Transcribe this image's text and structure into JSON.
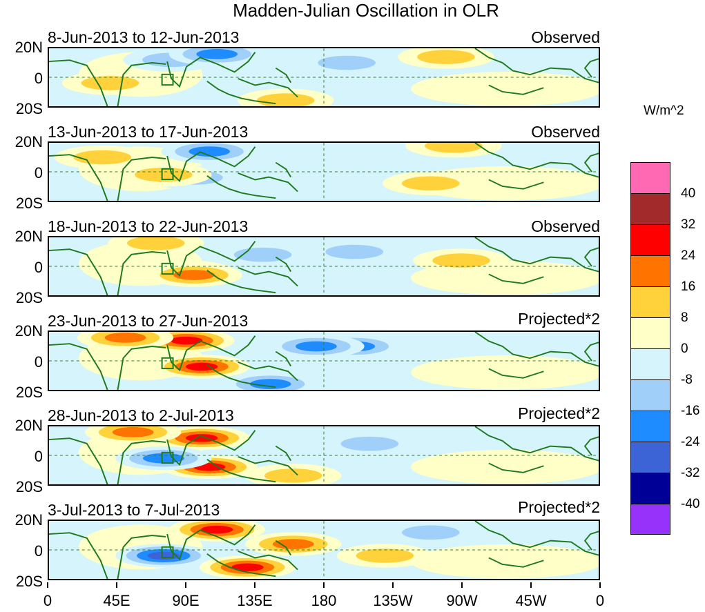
{
  "title": "Madden-Julian Oscillation in OLR",
  "units": "W/m^2",
  "chart_data": {
    "type": "heatmap",
    "title": "Madden-Julian Oscillation in OLR",
    "variable": "OLR anomaly",
    "units": "W/m^2",
    "x_ticks": [
      "0",
      "45E",
      "90E",
      "135E",
      "180",
      "135W",
      "90W",
      "45W",
      "0"
    ],
    "x_range_lon_east": [
      0,
      360
    ],
    "y_ticks": [
      "20N",
      "0",
      "20S"
    ],
    "y_range_lat": [
      -20,
      20
    ],
    "colorbar": {
      "levels": [
        "40",
        "32",
        "24",
        "16",
        "8",
        "0",
        "-8",
        "-16",
        "-24",
        "-32",
        "-40"
      ],
      "colors": [
        "#ff69b4",
        "#a32a2a",
        "#ff0000",
        "#ff7400",
        "#ffd23c",
        "#ffffc8",
        "#d6f4fb",
        "#a0d0fa",
        "#1e8cff",
        "#3c64d6",
        "#000096",
        "#9632fa"
      ]
    },
    "panels": [
      {
        "date_range": "8-Jun-2013 to 12-Jun-2013",
        "kind": "Observed",
        "anomalies": [
          {
            "lon": 80,
            "lat": 12,
            "value": -8
          },
          {
            "lon": 110,
            "lat": 16,
            "value": -16
          },
          {
            "lon": 195,
            "lat": 10,
            "value": -8
          },
          {
            "lon": 260,
            "lat": 14,
            "value": 8
          },
          {
            "lon": 155,
            "lat": -16,
            "value": 8
          },
          {
            "lon": 40,
            "lat": -4,
            "value": 0
          }
        ]
      },
      {
        "date_range": "13-Jun-2013 to 17-Jun-2013",
        "kind": "Observed",
        "anomalies": [
          {
            "lon": 105,
            "lat": 14,
            "value": -16
          },
          {
            "lon": 95,
            "lat": -4,
            "value": -8
          },
          {
            "lon": 75,
            "lat": -2,
            "value": 8
          },
          {
            "lon": 35,
            "lat": 10,
            "value": 8
          },
          {
            "lon": 265,
            "lat": 18,
            "value": 8
          },
          {
            "lon": 250,
            "lat": -8,
            "value": 8
          }
        ]
      },
      {
        "date_range": "18-Jun-2013 to 22-Jun-2013",
        "kind": "Observed",
        "anomalies": [
          {
            "lon": 70,
            "lat": 16,
            "value": 8
          },
          {
            "lon": 90,
            "lat": -4,
            "value": 8
          },
          {
            "lon": 140,
            "lat": 8,
            "value": -8
          },
          {
            "lon": 200,
            "lat": 10,
            "value": -8
          },
          {
            "lon": 95,
            "lat": -6,
            "value": 16
          },
          {
            "lon": 270,
            "lat": 4,
            "value": 0
          }
        ]
      },
      {
        "date_range": "23-Jun-2013 to 27-Jun-2013",
        "kind": "Projected*2",
        "anomalies": [
          {
            "lon": 90,
            "lat": 14,
            "value": 24
          },
          {
            "lon": 100,
            "lat": -4,
            "value": 24
          },
          {
            "lon": 50,
            "lat": 16,
            "value": 16
          },
          {
            "lon": 200,
            "lat": 10,
            "value": -16
          },
          {
            "lon": 175,
            "lat": 10,
            "value": -16
          },
          {
            "lon": 145,
            "lat": -16,
            "value": -16
          }
        ]
      },
      {
        "date_range": "28-Jun-2013 to 2-Jul-2013",
        "kind": "Projected*2",
        "anomalies": [
          {
            "lon": 100,
            "lat": 12,
            "value": 24
          },
          {
            "lon": 105,
            "lat": -8,
            "value": 24
          },
          {
            "lon": 55,
            "lat": 16,
            "value": 16
          },
          {
            "lon": 75,
            "lat": -2,
            "value": -16
          },
          {
            "lon": 210,
            "lat": 8,
            "value": -8
          },
          {
            "lon": 160,
            "lat": -14,
            "value": 8
          }
        ]
      },
      {
        "date_range": "3-Jul-2013 to 7-Jul-2013",
        "kind": "Projected*2",
        "anomalies": [
          {
            "lon": 110,
            "lat": 14,
            "value": 24
          },
          {
            "lon": 75,
            "lat": -4,
            "value": -24
          },
          {
            "lon": 130,
            "lat": -12,
            "value": 24
          },
          {
            "lon": 160,
            "lat": 4,
            "value": 16
          },
          {
            "lon": 220,
            "lat": -4,
            "value": 8
          },
          {
            "lon": 250,
            "lat": 12,
            "value": -8
          }
        ]
      }
    ]
  }
}
